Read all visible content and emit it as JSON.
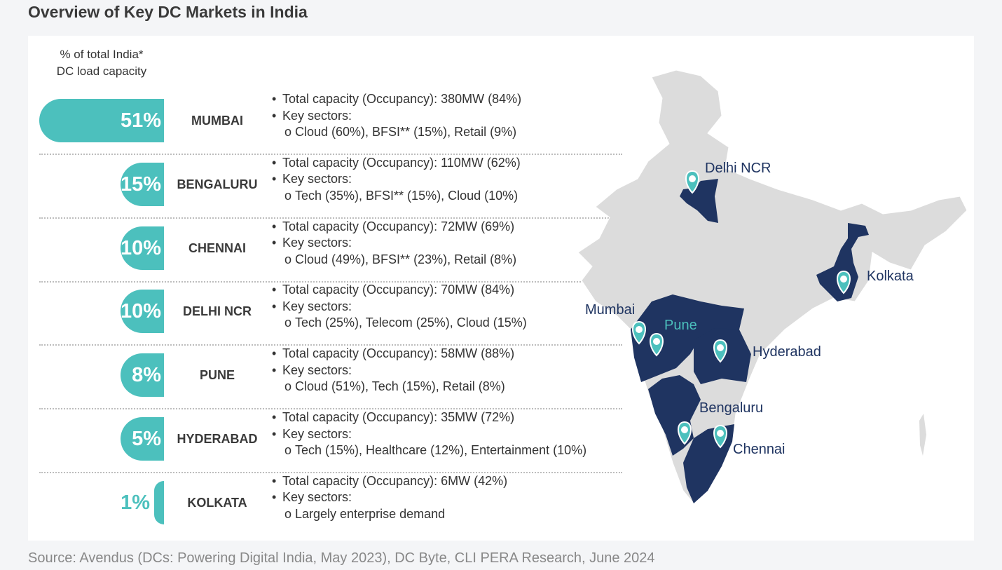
{
  "title": "Overview of Key DC Markets in India",
  "column_header": [
    "% of total India*",
    "DC load capacity"
  ],
  "source": "Source: Avendus (DCs: Powering Digital India, May 2023), DC Byte, CLI PERA Research, June 2024",
  "colors": {
    "teal": "#4cc0bd",
    "navy": "#1f3461",
    "land": "#dcdcdc",
    "text": "#333333"
  },
  "chart_data": {
    "type": "bar",
    "categories": [
      "MUMBAI",
      "BENGALURU",
      "CHENNAI",
      "DELHI NCR",
      "PUNE",
      "HYDERABAD",
      "KOLKATA"
    ],
    "values": [
      51,
      15,
      10,
      10,
      8,
      5,
      1
    ],
    "value_labels": [
      "51%",
      "15%",
      "10%",
      "10%",
      "8%",
      "5%",
      "1%"
    ],
    "details": [
      [
        "Total capacity (Occupancy): 380MW (84%)",
        "Key sectors:",
        "Cloud (60%), BFSI** (15%), Retail (9%)"
      ],
      [
        "Total capacity (Occupancy): 110MW (62%)",
        "Key sectors:",
        "Tech (35%), BFSI** (15%), Cloud (10%)"
      ],
      [
        "Total capacity (Occupancy): 72MW (69%)",
        "Key sectors:",
        "Cloud (49%), BFSI** (23%), Retail (8%)"
      ],
      [
        "Total capacity (Occupancy): 70MW (84%)",
        "Key sectors:",
        "Tech (25%), Telecom (25%), Cloud (15%)"
      ],
      [
        "Total capacity (Occupancy): 58MW (88%)",
        "Key sectors:",
        "Cloud (51%), Tech (15%), Retail (8%)"
      ],
      [
        "Total capacity (Occupancy): 35MW (72%)",
        "Key sectors:",
        "Tech (15%), Healthcare (12%), Entertainment (10%)"
      ],
      [
        "Total capacity (Occupancy): 6MW (42%)",
        "Key sectors:",
        "Largely enterprise demand"
      ]
    ],
    "bullet_marker": "•",
    "sub_marker": "o"
  },
  "map": {
    "labels": [
      "Delhi NCR",
      "Kolkata",
      "Mumbai",
      "Pune",
      "Hyderabad",
      "Bengaluru",
      "Chennai"
    ]
  }
}
